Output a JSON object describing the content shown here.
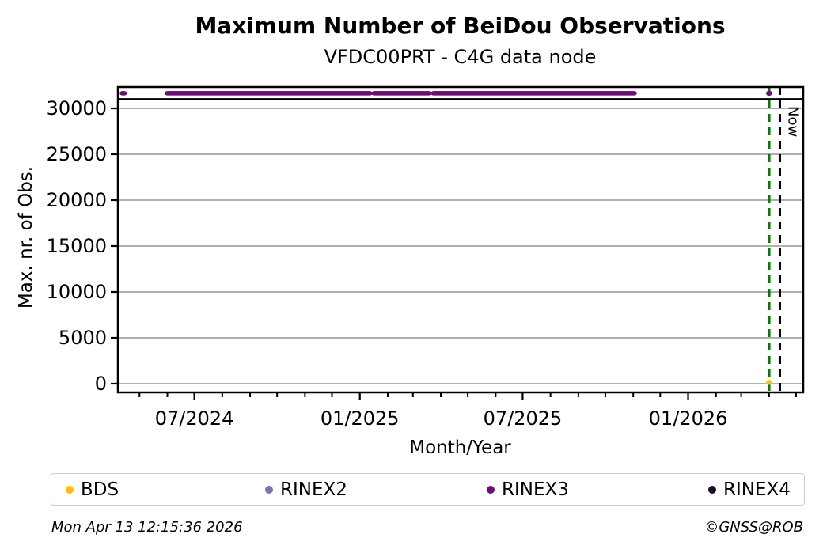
{
  "figure": {
    "title": "Maximum Number of BeiDou Observations",
    "subtitle": "VFDC00PRT - C4G data node"
  },
  "footer": {
    "timestamp": "Mon Apr 13 12:15:36 2026",
    "credit": "©GNSS@ROB"
  },
  "chart_data": {
    "type": "scatter",
    "title": "Maximum Number of BeiDou Observations",
    "subtitle": "VFDC00PRT - C4G data node",
    "xlabel": "Month/Year",
    "ylabel": "Max. nr. of Obs.",
    "x_range": [
      "2024-04-07",
      "2026-05-09"
    ],
    "ylim": [
      -950,
      32330
    ],
    "yticks": [
      0,
      5000,
      10000,
      15000,
      20000,
      25000,
      30000
    ],
    "xticks": [
      {
        "date": "2024-07-01",
        "label": "07/2024"
      },
      {
        "date": "2025-01-01",
        "label": "01/2025"
      },
      {
        "date": "2025-07-01",
        "label": "07/2025"
      },
      {
        "date": "2026-01-01",
        "label": "01/2026"
      }
    ],
    "minor_ticks": "monthly",
    "grid": {
      "horizontal": true,
      "color": "#b0b0b0"
    },
    "max_obs_line": {
      "value": 31000,
      "color": "#000000"
    },
    "vlines": [
      {
        "name": "last-data-line",
        "date": "2026-04-01",
        "color": "#008000",
        "style": "dashed"
      },
      {
        "name": "now-line",
        "date": "2026-04-13",
        "color": "#000000",
        "style": "dashed",
        "label": "Now"
      }
    ],
    "series": [
      {
        "name": "BDS",
        "color": "#ffc107",
        "marker_points": [
          {
            "date": "2026-04-01",
            "value": 150
          }
        ]
      },
      {
        "name": "RINEX2",
        "color": "#7b74b8",
        "marker_points": []
      },
      {
        "name": "RINEX3",
        "color": "#6f0c77",
        "value": 31650,
        "daily_segments": [
          [
            "2024-04-12",
            "2024-04-14"
          ],
          [
            "2024-06-01",
            "2025-01-12"
          ],
          [
            "2025-01-17",
            "2025-03-19"
          ],
          [
            "2025-03-24",
            "2025-11-02"
          ]
        ],
        "marker_points": [
          {
            "date": "2026-04-01",
            "value": 31650
          }
        ]
      },
      {
        "name": "RINEX4",
        "color": "#1f0b29",
        "marker_points": []
      }
    ],
    "legend": {
      "labels": [
        "BDS",
        "RINEX2",
        "RINEX3",
        "RINEX4"
      ],
      "position": "bottom"
    }
  }
}
